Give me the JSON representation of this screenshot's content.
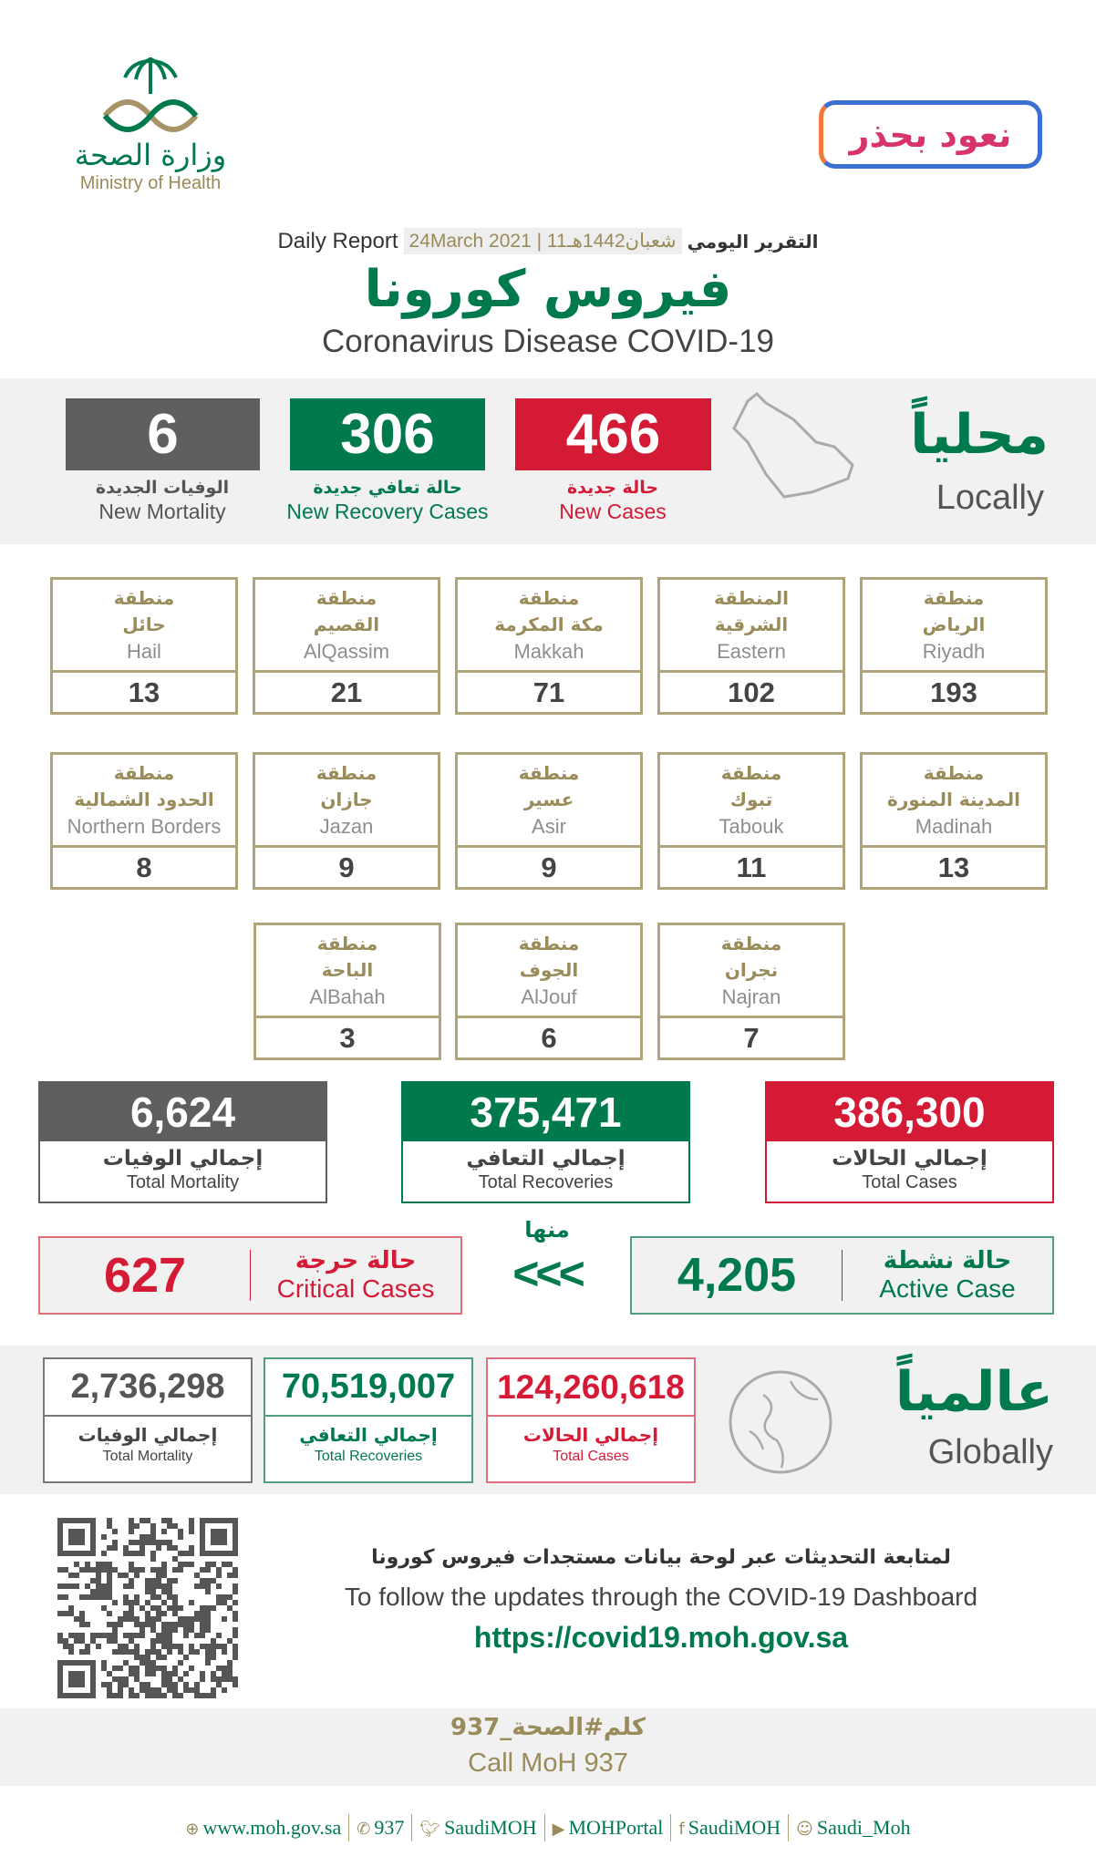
{
  "header": {
    "moh_ar": "وزارة الصحة",
    "moh_en": "Ministry of Health",
    "campaign": "نعود بحذر",
    "report_en": "Daily Report",
    "report_date": "24March 2021",
    "report_hijri": "11شعبان1442هـ",
    "report_ar": "التقرير اليومي",
    "title_ar": "فيروس كورونا",
    "title_en": "Coronavirus Disease COVID-19"
  },
  "local": {
    "title_ar": "محلياً",
    "title_en": "Locally",
    "new_cases": {
      "value": "466",
      "ar": "حالة جديدة",
      "en": "New Cases"
    },
    "new_recovery": {
      "value": "306",
      "ar": "حالة تعافي جديدة",
      "en": "New Recovery Cases"
    },
    "new_mortality": {
      "value": "6",
      "ar": "الوفيات الجديدة",
      "en": "New Mortality"
    }
  },
  "regions": [
    {
      "ar1": "منطقة",
      "ar2": "الرياض",
      "en": "Riyadh",
      "value": "193"
    },
    {
      "ar1": "المنطقة",
      "ar2": "الشرقية",
      "en": "Eastern",
      "value": "102"
    },
    {
      "ar1": "منطقة",
      "ar2": "مكة المكرمة",
      "en": "Makkah",
      "value": "71"
    },
    {
      "ar1": "منطقة",
      "ar2": "القصيم",
      "en": "AlQassim",
      "value": "21"
    },
    {
      "ar1": "منطقة",
      "ar2": "حائل",
      "en": "Hail",
      "value": "13"
    },
    {
      "ar1": "منطقة",
      "ar2": "المدينة المنورة",
      "en": "Madinah",
      "value": "13"
    },
    {
      "ar1": "منطقة",
      "ar2": "تبوك",
      "en": "Tabouk",
      "value": "11"
    },
    {
      "ar1": "منطقة",
      "ar2": "عسير",
      "en": "Asir",
      "value": "9"
    },
    {
      "ar1": "منطقة",
      "ar2": "جازان",
      "en": "Jazan",
      "value": "9"
    },
    {
      "ar1": "منطقة",
      "ar2": "الحدود الشمالية",
      "en": "Northern Borders",
      "value": "8"
    },
    {
      "ar1": "منطقة",
      "ar2": "نجران",
      "en": "Najran",
      "value": "7"
    },
    {
      "ar1": "منطقة",
      "ar2": "الجوف",
      "en": "AlJouf",
      "value": "6"
    },
    {
      "ar1": "منطقة",
      "ar2": "الباحة",
      "en": "AlBahah",
      "value": "3"
    }
  ],
  "totals": {
    "cases": {
      "value": "386,300",
      "ar": "إجمالي الحالات",
      "en": "Total Cases"
    },
    "recoveries": {
      "value": "375,471",
      "ar": "إجمالي التعافي",
      "en": "Total Recoveries"
    },
    "mortality": {
      "value": "6,624",
      "ar": "إجمالي الوفيات",
      "en": "Total Mortality"
    }
  },
  "active": {
    "value": "4,205",
    "ar": "حالة نشطة",
    "en": "Active Case"
  },
  "of_which": "منها",
  "arrows": "<<<",
  "critical": {
    "value": "627",
    "ar": "حالة حرجة",
    "en": "Critical Cases"
  },
  "global": {
    "title_ar": "عالمياً",
    "title_en": "Globally",
    "cases": {
      "value": "124,260,618",
      "ar": "إجمالي الحالات",
      "en": "Total Cases"
    },
    "recoveries": {
      "value": "70,519,007",
      "ar": "إجمالي التعافي",
      "en": "Total Recoveries"
    },
    "mortality": {
      "value": "2,736,298",
      "ar": "إجمالي الوفيات",
      "en": "Total Mortality"
    }
  },
  "dashboard": {
    "ar": "لمتابعة التحديثات عبر لوحة بيانات مستجدات فيروس كورونا",
    "en": "To follow the updates through the COVID-19 Dashboard",
    "url": "https://covid19.moh.gov.sa"
  },
  "call": {
    "ar": "كلم#الصحة_937",
    "en": "Call MoH 937"
  },
  "footer": [
    {
      "icon": "globe-icon",
      "label": "www.moh.gov.sa"
    },
    {
      "icon": "phone-icon",
      "label": "937"
    },
    {
      "icon": "twitter-icon",
      "label": "SaudiMOH"
    },
    {
      "icon": "youtube-icon",
      "label": "MOHPortal"
    },
    {
      "icon": "facebook-icon",
      "label": "SaudiMOH"
    },
    {
      "icon": "snapchat-icon",
      "label": "Saudi_Moh"
    }
  ],
  "colors": {
    "red": "#d51a35",
    "green": "#007a4d",
    "gray": "#5f5f5f",
    "gold": "#9a8b5a"
  }
}
